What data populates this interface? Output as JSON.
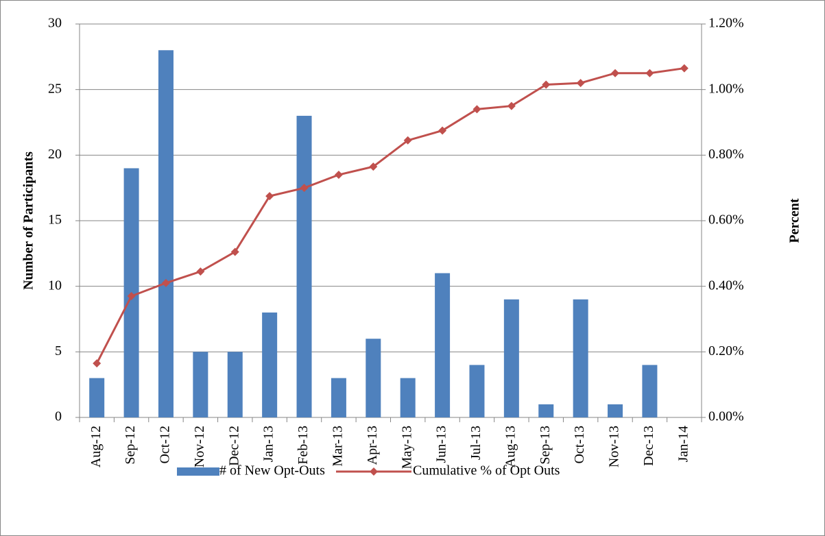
{
  "chart_data": {
    "type": "bar-line",
    "y_label": "Number of Participants",
    "y2_label": "Percent",
    "categories": [
      "Aug-12",
      "Sep-12",
      "Oct-12",
      "Nov-12",
      "Dec-12",
      "Jan-13",
      "Feb-13",
      "Mar-13",
      "Apr-13",
      "May-13",
      "Jun-13",
      "Jul-13",
      "Aug-13",
      "Sep-13",
      "Oct-13",
      "Nov-13",
      "Dec-13",
      "Jan-14"
    ],
    "series": [
      {
        "name": "# of New Opt-Outs",
        "color": "#4f81bd",
        "type": "bar",
        "values": [
          3,
          19,
          28,
          5,
          5,
          8,
          23,
          3,
          6,
          3,
          11,
          4,
          9,
          1,
          9,
          1,
          4,
          null
        ]
      },
      {
        "name": "Cumulative % of Opt Outs",
        "color": "#c0504d",
        "type": "line",
        "axis": "y2",
        "values": [
          0.165,
          0.37,
          0.41,
          0.445,
          0.505,
          0.675,
          0.7,
          0.74,
          0.765,
          0.845,
          0.875,
          0.94,
          0.95,
          1.015,
          1.02,
          1.05,
          1.05,
          1.065
        ]
      }
    ],
    "ylim": [
      0,
      30
    ],
    "yticks": [
      0,
      5,
      10,
      15,
      20,
      25,
      30
    ],
    "y2lim": [
      0,
      1.2
    ],
    "y2ticks": [
      {
        "value": 0,
        "label": "0.00%"
      },
      {
        "value": 0.2,
        "label": "0.20%"
      },
      {
        "value": 0.4,
        "label": "0.40%"
      },
      {
        "value": 0.6,
        "label": "0.60%"
      },
      {
        "value": 0.8,
        "label": "0.80%"
      },
      {
        "value": 1.0,
        "label": "1.00%"
      },
      {
        "value": 1.2,
        "label": "1.20%"
      }
    ],
    "grid": true
  }
}
